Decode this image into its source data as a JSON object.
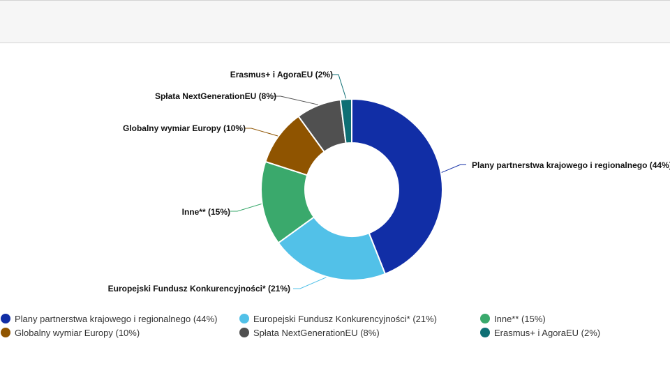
{
  "chart_data": {
    "type": "pie",
    "donut": true,
    "slices": [
      {
        "label": "Plany partnerstwa krajowego i regionalnego (44%)",
        "legend": "Plany partnerstwa krajowego i regionalnego (44%)",
        "value": 44,
        "color": "#112ea6"
      },
      {
        "label": "Europejski Fundusz Konkurencyjności* (21%)",
        "legend": "Europejski Fundusz Konkurencyjności* (21%)",
        "value": 21,
        "color": "#52c1e8"
      },
      {
        "label": "Inne** (15%)",
        "legend": "Inne** (15%)",
        "value": 15,
        "color": "#3aa96c"
      },
      {
        "label": "Globalny wymiar Europy (10%)",
        "legend": "Globalny wymiar Europy (10%)",
        "value": 10,
        "color": "#8f5400"
      },
      {
        "label": "Spłata NextGenerationEU (8%)",
        "legend": "Spłata NextGenerationEU (8%)",
        "value": 8,
        "color": "#505050"
      },
      {
        "label": "Erasmus+ i AgoraEU (2%)",
        "legend": "Erasmus+ i AgoraEU (2%)",
        "value": 2,
        "color": "#0e6f74"
      }
    ],
    "legend_position": "bottom"
  }
}
